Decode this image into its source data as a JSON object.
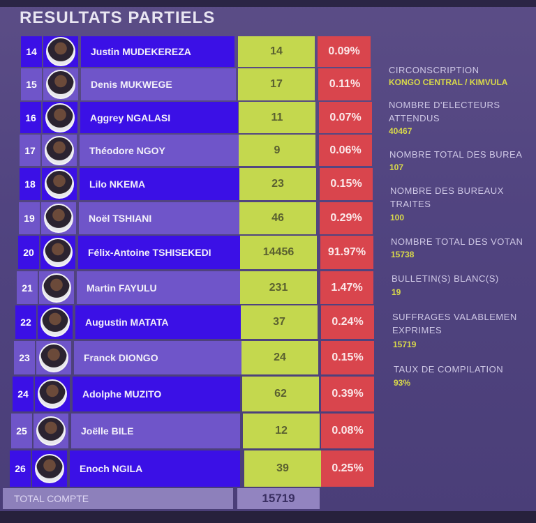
{
  "title": "RESULTATS PARTIELS",
  "candidates": [
    {
      "num": "14",
      "name": "Justin MUDEKEREZA",
      "votes": "14",
      "pct": "0.09%"
    },
    {
      "num": "15",
      "name": "Denis MUKWEGE",
      "votes": "17",
      "pct": "0.11%"
    },
    {
      "num": "16",
      "name": "Aggrey NGALASI",
      "votes": "11",
      "pct": "0.07%"
    },
    {
      "num": "17",
      "name": "Théodore NGOY",
      "votes": "9",
      "pct": "0.06%"
    },
    {
      "num": "18",
      "name": "Lilo NKEMA",
      "votes": "23",
      "pct": "0.15%"
    },
    {
      "num": "19",
      "name": "Noël TSHIANI",
      "votes": "46",
      "pct": "0.29%"
    },
    {
      "num": "20",
      "name": "Félix-Antoine TSHISEKEDI",
      "votes": "14456",
      "pct": "91.97%"
    },
    {
      "num": "21",
      "name": "Martin FAYULU",
      "votes": "231",
      "pct": "1.47%"
    },
    {
      "num": "22",
      "name": "Augustin MATATA",
      "votes": "37",
      "pct": "0.24%"
    },
    {
      "num": "23",
      "name": "Franck DIONGO",
      "votes": "24",
      "pct": "0.15%"
    },
    {
      "num": "24",
      "name": "Adolphe MUZITO",
      "votes": "62",
      "pct": "0.39%"
    },
    {
      "num": "25",
      "name": "Joëlle BILE",
      "votes": "12",
      "pct": "0.08%"
    },
    {
      "num": "26",
      "name": "Enoch NGILA",
      "votes": "39",
      "pct": "0.25%"
    }
  ],
  "stats": [
    {
      "label": "CIRCONSCRIPTION",
      "value": "KONGO CENTRAL / KIMVULA"
    },
    {
      "label": "NOMBRE D'ELECTEURS ATTENDUS",
      "value": "40467"
    },
    {
      "label": "NOMBRE TOTAL DES BUREA",
      "value": "107"
    },
    {
      "label": "NOMBRE DES BUREAUX TRAITES",
      "value": "100"
    },
    {
      "label": "NOMBRE TOTAL DES VOTAN",
      "value": "15738"
    },
    {
      "label": "BULLETIN(S) BLANC(S)",
      "value": "19"
    },
    {
      "label": "SUFFRAGES VALABLEMEN EXPRIMES",
      "value": "15719"
    },
    {
      "label": "TAUX DE COMPILATION",
      "value": "93%"
    }
  ],
  "total": {
    "label": "TOTAL COMPTE",
    "value": "15719"
  }
}
